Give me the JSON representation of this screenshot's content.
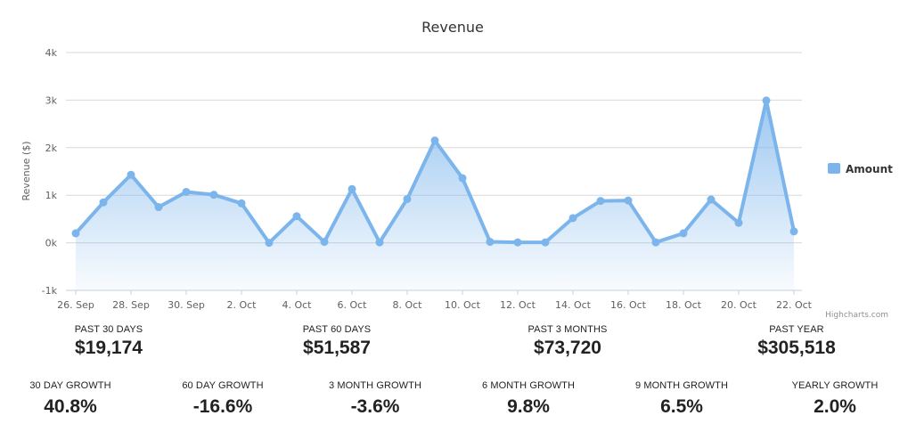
{
  "chart_data": {
    "type": "area",
    "title": "Revenue",
    "ylabel": "Revenue ($)",
    "ylim": [
      -1000,
      4000
    ],
    "y_ticks": [
      -1000,
      0,
      1000,
      2000,
      3000,
      4000
    ],
    "y_tick_labels": [
      "-1k",
      "0k",
      "1k",
      "2k",
      "3k",
      "4k"
    ],
    "x_tick_labels": [
      "26. Sep",
      "28. Sep",
      "30. Sep",
      "2. Oct",
      "4. Oct",
      "6. Oct",
      "8. Oct",
      "10. Oct",
      "12. Oct",
      "14. Oct",
      "16. Oct",
      "18. Oct",
      "20. Oct",
      "22. Oct"
    ],
    "x": [
      "26. Sep",
      "27. Sep",
      "28. Sep",
      "29. Sep",
      "30. Sep",
      "1. Oct",
      "2. Oct",
      "3. Oct",
      "4. Oct",
      "5. Oct",
      "6. Oct",
      "7. Oct",
      "8. Oct",
      "9. Oct",
      "10. Oct",
      "11. Oct",
      "12. Oct",
      "13. Oct",
      "14. Oct",
      "15. Oct",
      "16. Oct",
      "17. Oct",
      "18. Oct",
      "19. Oct",
      "20. Oct",
      "21. Oct",
      "22. Oct"
    ],
    "series": [
      {
        "name": "Amount",
        "values": [
          200,
          850,
          1430,
          750,
          1070,
          1010,
          830,
          0,
          560,
          20,
          1130,
          10,
          920,
          2150,
          1360,
          20,
          10,
          10,
          520,
          880,
          890,
          10,
          200,
          910,
          420,
          2990,
          240
        ]
      }
    ],
    "legend_position": "right",
    "grid": true,
    "colors": {
      "line": "#7cb5ec",
      "fill": "#7cb5ec"
    },
    "credits": "Highcharts.com"
  },
  "stats": [
    {
      "label": "PAST 30 DAYS",
      "value": "$19,174"
    },
    {
      "label": "PAST 60 DAYS",
      "value": "$51,587"
    },
    {
      "label": "PAST 3 MONTHS",
      "value": "$73,720"
    },
    {
      "label": "PAST YEAR",
      "value": "$305,518"
    }
  ],
  "growth": [
    {
      "label": "30 DAY GROWTH",
      "value": "40.8%"
    },
    {
      "label": "60 DAY GROWTH",
      "value": "-16.6%"
    },
    {
      "label": "3 MONTH GROWTH",
      "value": "-3.6%"
    },
    {
      "label": "6 MONTH GROWTH",
      "value": "9.8%"
    },
    {
      "label": "9 MONTH GROWTH",
      "value": "6.5%"
    },
    {
      "label": "YEARLY GROWTH",
      "value": "2.0%"
    }
  ]
}
